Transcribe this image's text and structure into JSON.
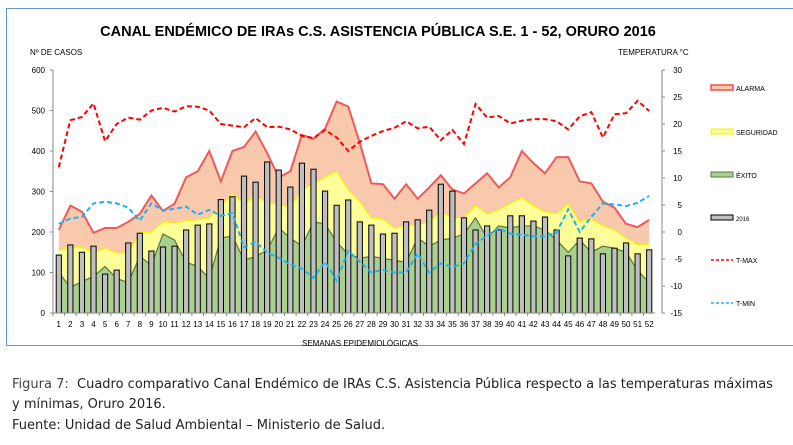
{
  "caption": {
    "figure_label": "Figura 7:",
    "line1": "Cuadro comparativo Canal Endémico de IRAs C.S. Asistencia Pública respecto a las temperaturas máximas",
    "line2": "y mínimas, Oruro 2016.",
    "source": "Fuente: Unidad de Salud Ambiental – Ministerio de Salud."
  },
  "chart_data": {
    "type": "area",
    "title": "CANAL ENDÉMICO DE IRAs C.S. ASISTENCIA PÚBLICA S.E. 1 - 52,  ORURO 2016",
    "xlabel": "SEMANAS EPIDEMIOLÓGICAS",
    "ylabel": "Nº DE CASOS",
    "y2label": "TEMPERATURA °C",
    "ylim": [
      0,
      600
    ],
    "y2lim": [
      -15,
      30
    ],
    "yticks": [
      "0",
      "100",
      "200",
      "300",
      "400",
      "500",
      "600"
    ],
    "y2ticks": [
      "-15",
      "-10",
      "-5",
      "0",
      "5",
      "10",
      "15",
      "20",
      "25",
      "30"
    ],
    "categories": [
      "1",
      "2",
      "3",
      "4",
      "5",
      "6",
      "7",
      "8",
      "9",
      "10",
      "11",
      "12",
      "13",
      "14",
      "15",
      "16",
      "17",
      "18",
      "19",
      "20",
      "21",
      "22",
      "23",
      "24",
      "25",
      "26",
      "27",
      "28",
      "29",
      "30",
      "31",
      "32",
      "33",
      "34",
      "35",
      "36",
      "37",
      "38",
      "39",
      "40",
      "41",
      "42",
      "43",
      "44",
      "45",
      "46",
      "47",
      "48",
      "49",
      "50",
      "51",
      "52"
    ],
    "legend_position": "right",
    "series": [
      {
        "name": "ALARMA",
        "kind": "area",
        "axis": "left",
        "fill": "#f8c9ad",
        "stroke": "#f0595a",
        "values": [
          205,
          265,
          250,
          198,
          210,
          210,
          225,
          245,
          290,
          252,
          270,
          335,
          350,
          400,
          325,
          400,
          410,
          448,
          395,
          335,
          350,
          440,
          430,
          455,
          522,
          510,
          420,
          320,
          318,
          282,
          318,
          282,
          310,
          340,
          305,
          295,
          320,
          345,
          310,
          335,
          400,
          370,
          345,
          385,
          385,
          325,
          320,
          275,
          260,
          220,
          212,
          230
        ]
      },
      {
        "name": "SEGURIDAD",
        "kind": "area",
        "axis": "left",
        "fill": "#fefe99",
        "stroke": "#f2f200",
        "values": [
          155,
          163,
          163,
          148,
          160,
          148,
          148,
          198,
          200,
          225,
          222,
          228,
          230,
          235,
          265,
          295,
          270,
          290,
          272,
          270,
          260,
          305,
          320,
          335,
          350,
          305,
          275,
          235,
          232,
          210,
          215,
          218,
          225,
          250,
          235,
          235,
          265,
          245,
          255,
          270,
          285,
          265,
          250,
          245,
          270,
          225,
          232,
          215,
          205,
          185,
          168,
          170
        ]
      },
      {
        "name": "ÉXITO",
        "kind": "area",
        "axis": "left",
        "fill": "#a9d08e",
        "stroke": "#5a7a3a",
        "values": [
          100,
          63,
          78,
          90,
          115,
          85,
          75,
          140,
          118,
          195,
          180,
          125,
          115,
          85,
          185,
          190,
          130,
          140,
          155,
          210,
          185,
          165,
          225,
          220,
          175,
          145,
          135,
          140,
          135,
          130,
          125,
          185,
          165,
          180,
          185,
          195,
          235,
          185,
          215,
          210,
          215,
          215,
          205,
          180,
          150,
          180,
          150,
          165,
          160,
          150,
          105,
          75
        ]
      },
      {
        "name": "2016",
        "kind": "bar",
        "axis": "left",
        "fill": "#bfbfbf",
        "stroke": "#000000",
        "values": [
          143,
          168,
          150,
          165,
          96,
          106,
          173,
          197,
          153,
          163,
          165,
          205,
          217,
          220,
          280,
          287,
          338,
          323,
          373,
          353,
          311,
          370,
          355,
          301,
          266,
          279,
          225,
          217,
          195,
          197,
          225,
          230,
          254,
          318,
          301,
          235,
          205,
          215,
          205,
          240,
          240,
          227,
          237,
          205,
          141,
          185,
          183,
          146,
          160,
          173,
          146,
          156
        ]
      },
      {
        "name": "T-MAX",
        "kind": "line",
        "axis": "right",
        "stroke": "#ff0000",
        "dash": true,
        "values": [
          12.0,
          20.7,
          21.3,
          23.8,
          16.8,
          20.0,
          21.2,
          20.8,
          22.5,
          23.0,
          22.3,
          23.3,
          23.2,
          22.5,
          20.0,
          19.7,
          19.4,
          21.1,
          19.4,
          19.5,
          19.0,
          17.8,
          17.4,
          18.9,
          17.5,
          15.0,
          16.7,
          17.8,
          18.7,
          19.3,
          20.5,
          19.2,
          19.5,
          17.0,
          18.9,
          16.3,
          23.7,
          21.2,
          21.5,
          20.1,
          20.6,
          20.9,
          20.9,
          20.5,
          19.0,
          21.4,
          22.2,
          17.5,
          21.8,
          22.0,
          24.3,
          22.4
        ]
      },
      {
        "name": "T-MIN",
        "kind": "line",
        "axis": "right",
        "stroke": "#1eb1ef",
        "dash": true,
        "values": [
          1.5,
          2.5,
          2.8,
          5.3,
          5.6,
          5.3,
          4.5,
          2.1,
          5.3,
          4.0,
          4.3,
          4.7,
          3.2,
          4.1,
          3.0,
          3.5,
          -2.8,
          -1.8,
          -3.8,
          -4.8,
          -6.0,
          -6.8,
          -8.5,
          -5.5,
          -9.0,
          -3.5,
          -5.5,
          -7.5,
          -7.0,
          -7.5,
          -7.5,
          -4.0,
          -7.5,
          -5.8,
          -6.5,
          -5.8,
          -2.2,
          -0.7,
          0.7,
          -0.3,
          -0.5,
          -0.8,
          -0.8,
          -0.1,
          4.2,
          0.0,
          2.8,
          5.3,
          5.1,
          4.8,
          5.4,
          6.7
        ]
      }
    ]
  }
}
